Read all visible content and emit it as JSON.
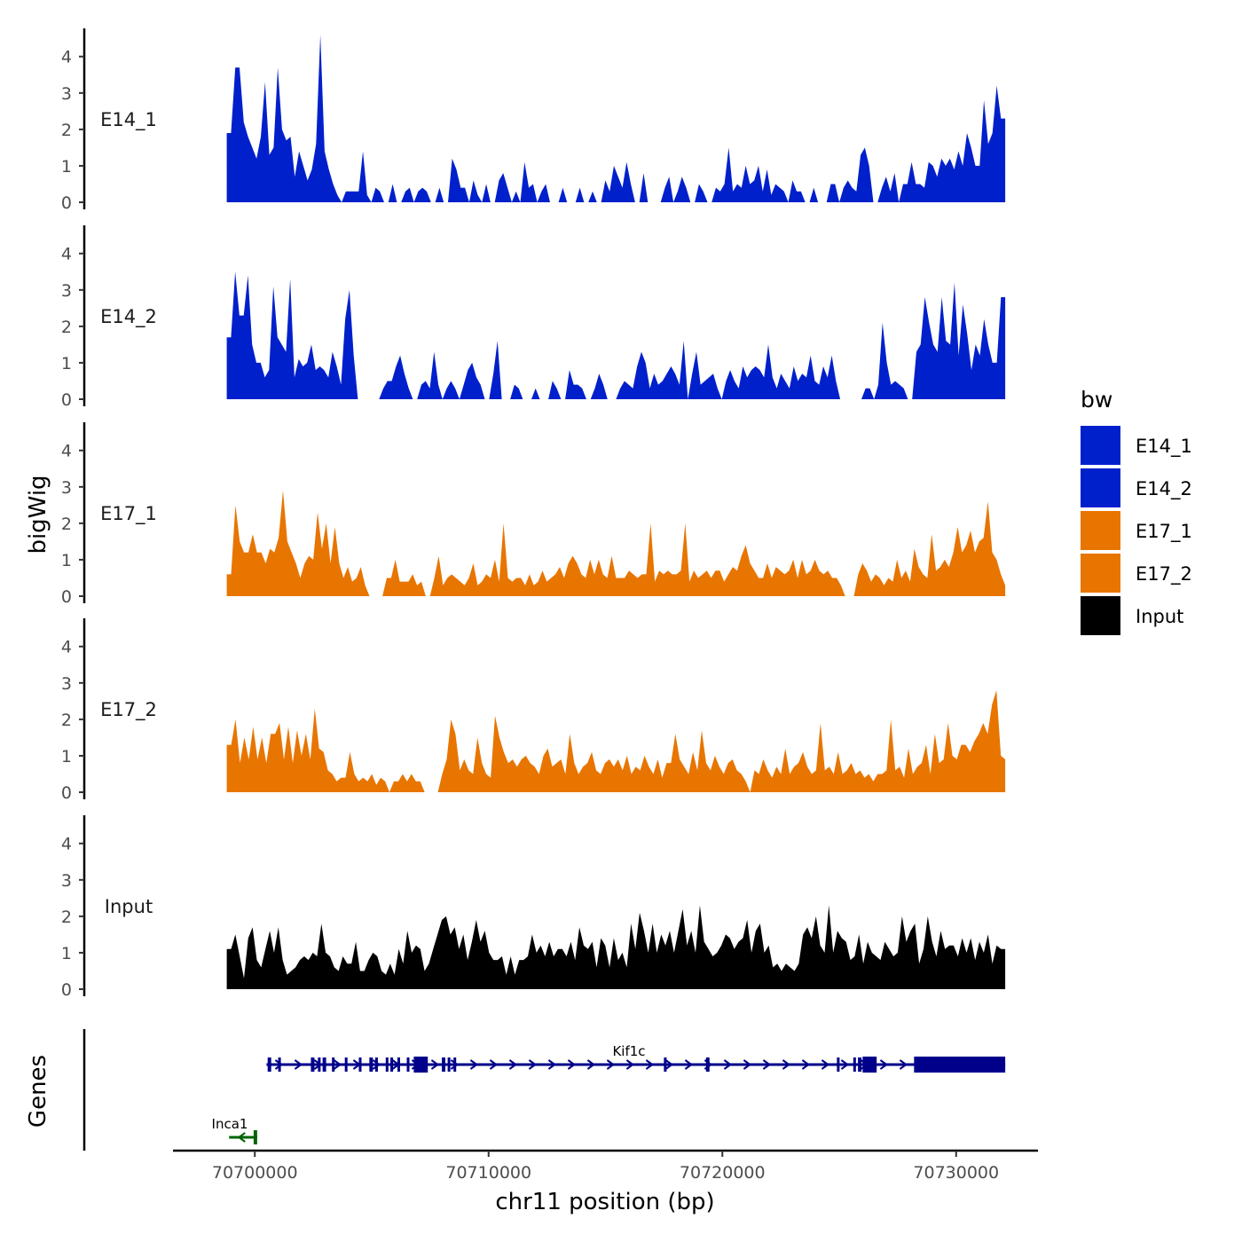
{
  "chart_data": {
    "type": "area",
    "y_axis_title": "bigWig",
    "x_axis_title": "chr11 position (bp)",
    "xlim": [
      70696500,
      70733500
    ],
    "data_range": [
      70698800,
      70732100
    ],
    "ylim": [
      0,
      4.7
    ],
    "y_ticks": [
      "0",
      "1",
      "2",
      "3",
      "4"
    ],
    "x_ticks": [
      {
        "value": 70700000,
        "label": "70700000"
      },
      {
        "value": 70710000,
        "label": "70710000"
      },
      {
        "value": 70720000,
        "label": "70720000"
      },
      {
        "value": 70730000,
        "label": "70730000"
      }
    ],
    "legend": {
      "title": "bw",
      "items": [
        {
          "label": "E14_1",
          "color": "#0020cc"
        },
        {
          "label": "E14_2",
          "color": "#0020cc"
        },
        {
          "label": "E17_1",
          "color": "#e87500"
        },
        {
          "label": "E17_2",
          "color": "#e87500"
        },
        {
          "label": "Input",
          "color": "#000000"
        }
      ]
    },
    "series": [
      {
        "name": "E14_1",
        "color": "#0020cc",
        "values": [
          1.9,
          1.9,
          3.7,
          3.7,
          2.2,
          1.8,
          1.5,
          1.2,
          1.8,
          3.3,
          1.3,
          1.5,
          3.7,
          2.0,
          1.7,
          1.8,
          0.7,
          1.4,
          1.0,
          0.6,
          0.9,
          1.6,
          4.6,
          1.4,
          0.9,
          0.5,
          0.2,
          0.0,
          0.3,
          0.3,
          0.3,
          0.3,
          1.4,
          0.2,
          0.0,
          0.4,
          0.3,
          0.0,
          0.0,
          0.5,
          0.0,
          0.0,
          0.3,
          0.4,
          0.0,
          0.3,
          0.4,
          0.3,
          0.0,
          0.0,
          0.4,
          0.0,
          0.0,
          1.2,
          0.9,
          0.4,
          0.4,
          0.0,
          0.6,
          0.2,
          0.0,
          0.5,
          0.0,
          0.0,
          0.6,
          0.8,
          0.4,
          0.0,
          0.3,
          0.0,
          1.1,
          0.4,
          0.5,
          0.0,
          0.3,
          0.5,
          0.0,
          0.0,
          0.0,
          0.4,
          0.0,
          0.0,
          0.0,
          0.4,
          0.0,
          0.0,
          0.3,
          0.0,
          0.0,
          0.6,
          0.3,
          1.0,
          0.7,
          0.4,
          1.1,
          0.5,
          0.0,
          0.0,
          0.8,
          0.0,
          0.0,
          0.0,
          0.0,
          0.4,
          0.7,
          0.0,
          0.3,
          0.7,
          0.4,
          0.0,
          0.0,
          0.5,
          0.3,
          0.0,
          0.0,
          0.4,
          0.3,
          0.5,
          1.5,
          0.3,
          0.5,
          0.4,
          1.0,
          0.5,
          0.6,
          1.0,
          0.3,
          0.9,
          0.2,
          0.5,
          0.4,
          0.3,
          0.0,
          0.6,
          0.3,
          0.3,
          0.0,
          0.0,
          0.4,
          0.0,
          0.0,
          0.0,
          0.5,
          0.5,
          0.0,
          0.4,
          0.6,
          0.4,
          0.3,
          1.3,
          1.5,
          1.0,
          0.0,
          0.0,
          0.4,
          0.7,
          0.3,
          0.8,
          0.0,
          0.5,
          0.5,
          1.1,
          0.5,
          0.5,
          0.4,
          1.1,
          1.0,
          0.7,
          1.2,
          1.0,
          1.2,
          0.9,
          1.4,
          1.0,
          1.9,
          1.5,
          1.0,
          1.0,
          2.8,
          1.6,
          1.9,
          3.2,
          2.3,
          2.3
        ]
      },
      {
        "name": "E14_2",
        "color": "#0020cc",
        "values": [
          1.7,
          1.7,
          3.5,
          2.3,
          2.3,
          3.4,
          1.5,
          1.0,
          1.0,
          0.6,
          0.8,
          3.1,
          1.7,
          1.5,
          1.3,
          3.3,
          0.6,
          1.1,
          0.9,
          1.0,
          1.5,
          0.8,
          0.9,
          0.8,
          0.6,
          1.3,
          0.9,
          0.4,
          2.2,
          3.0,
          1.2,
          0.0,
          0.0,
          0.0,
          0.0,
          0.0,
          0.0,
          0.3,
          0.5,
          0.5,
          0.9,
          1.2,
          0.7,
          0.3,
          0.0,
          0.0,
          0.4,
          0.5,
          0.3,
          1.3,
          0.4,
          0.0,
          0.3,
          0.5,
          0.3,
          0.0,
          0.4,
          0.8,
          1.0,
          0.6,
          0.4,
          0.0,
          0.0,
          0.7,
          1.6,
          0.0,
          0.0,
          0.0,
          0.4,
          0.3,
          0.0,
          0.0,
          0.0,
          0.3,
          0.0,
          0.0,
          0.0,
          0.5,
          0.3,
          0.0,
          0.0,
          0.8,
          0.4,
          0.4,
          0.3,
          0.0,
          0.0,
          0.3,
          0.7,
          0.4,
          0.0,
          0.0,
          0.0,
          0.3,
          0.5,
          0.4,
          0.3,
          0.9,
          1.3,
          1.0,
          0.3,
          0.7,
          0.4,
          0.5,
          0.7,
          0.9,
          0.7,
          0.4,
          1.6,
          0.0,
          0.7,
          1.3,
          0.4,
          0.5,
          0.6,
          0.7,
          0.3,
          0.0,
          0.5,
          0.8,
          0.5,
          0.3,
          0.9,
          0.6,
          0.8,
          0.9,
          0.8,
          0.6,
          1.5,
          0.6,
          0.3,
          0.7,
          0.5,
          0.3,
          0.9,
          0.5,
          0.7,
          0.6,
          1.2,
          0.5,
          0.4,
          0.9,
          0.6,
          1.2,
          0.5,
          0.0,
          0.0,
          0.0,
          0.0,
          0.0,
          0.0,
          0.3,
          0.3,
          0.0,
          0.4,
          2.1,
          1.0,
          0.4,
          0.5,
          0.4,
          0.3,
          0.0,
          0.0,
          1.3,
          1.5,
          2.8,
          2.1,
          1.5,
          1.3,
          2.8,
          1.6,
          1.5,
          3.2,
          1.2,
          2.6,
          1.8,
          0.8,
          1.5,
          1.2,
          2.2,
          1.5,
          1.0,
          1.0,
          2.8,
          2.8
        ]
      },
      {
        "name": "E17_1",
        "color": "#e87500",
        "values": [
          0.6,
          0.6,
          2.5,
          1.5,
          1.2,
          1.2,
          1.7,
          1.2,
          1.2,
          0.9,
          1.3,
          1.2,
          1.6,
          2.9,
          1.5,
          1.2,
          0.9,
          0.5,
          0.9,
          1.1,
          1.0,
          2.3,
          1.3,
          2.0,
          0.9,
          1.9,
          0.9,
          0.5,
          0.8,
          0.4,
          0.5,
          0.8,
          0.3,
          0.0,
          0.0,
          0.0,
          0.0,
          0.5,
          0.5,
          1.0,
          0.4,
          0.4,
          0.4,
          0.6,
          0.3,
          0.4,
          0.0,
          0.0,
          0.5,
          1.1,
          0.3,
          0.5,
          0.6,
          0.5,
          0.4,
          0.3,
          0.5,
          0.9,
          0.3,
          0.4,
          0.6,
          0.5,
          1.0,
          0.4,
          2.0,
          0.5,
          0.4,
          0.5,
          0.5,
          0.3,
          0.6,
          0.3,
          0.4,
          0.7,
          0.4,
          0.5,
          0.6,
          0.8,
          0.5,
          0.9,
          1.1,
          0.9,
          0.6,
          0.5,
          1.0,
          0.6,
          1.0,
          0.6,
          0.5,
          1.1,
          0.5,
          0.5,
          0.5,
          0.7,
          0.6,
          0.5,
          0.6,
          0.6,
          2.0,
          0.4,
          0.7,
          0.6,
          0.7,
          0.6,
          0.6,
          0.7,
          2.0,
          0.4,
          0.7,
          0.5,
          0.6,
          0.7,
          0.5,
          0.7,
          0.7,
          0.4,
          0.6,
          0.8,
          0.7,
          1.1,
          1.4,
          0.9,
          0.7,
          0.5,
          0.5,
          0.9,
          0.5,
          0.8,
          0.7,
          0.6,
          0.7,
          1.0,
          0.5,
          1.0,
          0.6,
          0.7,
          1.0,
          0.7,
          0.6,
          0.7,
          0.5,
          0.5,
          0.3,
          0.0,
          0.0,
          0.0,
          0.6,
          0.9,
          0.7,
          0.4,
          0.6,
          0.5,
          0.3,
          0.5,
          0.4,
          1.0,
          0.5,
          0.7,
          0.4,
          1.3,
          0.8,
          0.6,
          0.5,
          1.7,
          0.7,
          0.8,
          1.0,
          0.8,
          1.2,
          1.9,
          1.2,
          1.4,
          1.8,
          1.2,
          1.5,
          1.6,
          2.6,
          1.2,
          1.0,
          0.6,
          0.3
        ]
      },
      {
        "name": "E17_2",
        "color": "#e87500",
        "values": [
          1.3,
          1.3,
          2.0,
          0.8,
          1.5,
          0.9,
          1.8,
          0.9,
          1.5,
          0.8,
          1.6,
          1.6,
          1.9,
          0.9,
          1.8,
          0.8,
          1.7,
          1.0,
          1.6,
          0.9,
          2.3,
          1.2,
          1.1,
          0.6,
          0.5,
          0.3,
          0.4,
          0.4,
          1.1,
          0.5,
          0.3,
          0.4,
          0.3,
          0.5,
          0.2,
          0.4,
          0.3,
          0.0,
          0.3,
          0.3,
          0.5,
          0.3,
          0.5,
          0.3,
          0.3,
          0.0,
          0.0,
          0.0,
          0.0,
          0.5,
          0.9,
          2.0,
          1.6,
          0.6,
          0.9,
          0.6,
          0.5,
          1.5,
          0.8,
          0.5,
          0.4,
          2.1,
          1.5,
          1.1,
          0.8,
          0.9,
          0.7,
          0.9,
          1.0,
          0.8,
          0.7,
          0.5,
          1.0,
          1.2,
          0.7,
          0.8,
          0.9,
          0.5,
          1.6,
          0.8,
          0.5,
          0.7,
          0.8,
          1.1,
          0.6,
          0.5,
          0.8,
          0.9,
          0.7,
          0.9,
          0.6,
          1.0,
          0.5,
          0.7,
          0.6,
          1.0,
          0.7,
          0.5,
          0.9,
          0.4,
          0.8,
          0.8,
          1.6,
          0.9,
          0.7,
          0.5,
          1.1,
          0.6,
          1.7,
          0.8,
          0.6,
          1.0,
          0.7,
          0.5,
          0.8,
          0.9,
          0.6,
          0.5,
          0.3,
          0.0,
          0.6,
          0.5,
          0.9,
          0.6,
          0.4,
          0.7,
          0.5,
          1.2,
          0.5,
          0.7,
          0.8,
          1.1,
          0.7,
          0.5,
          0.6,
          1.9,
          0.6,
          0.7,
          0.5,
          1.1,
          0.5,
          0.6,
          0.8,
          0.5,
          0.6,
          0.4,
          0.5,
          0.3,
          0.5,
          0.5,
          0.6,
          2.0,
          0.6,
          0.7,
          0.4,
          1.2,
          0.5,
          0.7,
          0.8,
          1.3,
          0.5,
          1.6,
          0.8,
          0.9,
          1.9,
          1.0,
          0.9,
          1.3,
          1.3,
          1.1,
          1.4,
          1.6,
          1.9,
          1.6,
          2.4,
          2.8,
          1.0,
          0.9
        ]
      },
      {
        "name": "Input",
        "color": "#000000",
        "values": [
          1.1,
          1.1,
          1.5,
          0.9,
          0.3,
          1.4,
          1.7,
          0.8,
          0.6,
          1.1,
          1.6,
          1.0,
          1.7,
          0.8,
          0.4,
          0.5,
          0.6,
          0.8,
          0.9,
          0.8,
          1.0,
          0.9,
          1.8,
          1.0,
          0.9,
          0.6,
          0.5,
          0.9,
          0.7,
          0.7,
          1.3,
          0.5,
          0.5,
          0.8,
          1.0,
          0.9,
          0.5,
          0.4,
          0.7,
          0.4,
          1.1,
          0.7,
          1.6,
          1.0,
          1.2,
          1.1,
          0.5,
          0.7,
          1.1,
          1.5,
          1.9,
          2.0,
          1.5,
          1.7,
          1.1,
          1.5,
          0.8,
          1.3,
          1.9,
          1.3,
          1.6,
          1.0,
          0.8,
          0.8,
          0.9,
          0.4,
          0.9,
          0.4,
          0.8,
          0.8,
          0.9,
          1.5,
          1.0,
          1.2,
          0.9,
          1.3,
          0.9,
          1.1,
          1.1,
          0.9,
          1.3,
          0.8,
          1.7,
          1.2,
          1.1,
          1.3,
          0.6,
          1.4,
          1.2,
          0.6,
          1.4,
          0.8,
          1.0,
          0.6,
          1.8,
          1.1,
          2.1,
          1.6,
          1.0,
          1.8,
          1.0,
          1.5,
          1.2,
          1.6,
          1.0,
          1.6,
          2.2,
          1.2,
          1.6,
          1.0,
          2.3,
          1.3,
          1.1,
          0.9,
          1.0,
          1.2,
          1.5,
          1.4,
          1.1,
          1.3,
          1.4,
          1.9,
          1.0,
          1.6,
          1.8,
          1.0,
          1.2,
          0.6,
          0.7,
          0.5,
          0.7,
          0.6,
          0.5,
          0.7,
          1.5,
          1.7,
          1.4,
          2.0,
          1.2,
          1.0,
          2.3,
          1.0,
          1.6,
          1.4,
          1.3,
          0.8,
          0.9,
          1.5,
          0.7,
          1.3,
          1.0,
          0.9,
          0.8,
          1.3,
          1.1,
          0.9,
          1.0,
          2.0,
          1.3,
          1.6,
          1.8,
          0.7,
          1.1,
          2.0,
          1.3,
          0.9,
          1.6,
          1.1,
          1.2,
          1.2,
          0.9,
          1.4,
          1.0,
          1.4,
          0.8,
          1.3,
          1.0,
          1.5,
          0.7,
          1.2,
          1.1,
          1.1
        ]
      }
    ],
    "genes_track": {
      "label": "Genes",
      "genes": [
        {
          "name": "Kif1c",
          "strand": "+",
          "start": 70700500,
          "end": 70732100,
          "color": "#00008b",
          "exons": [
            [
              70700550,
              70700700
            ],
            [
              70701000,
              70701100
            ],
            [
              70702400,
              70702550
            ],
            [
              70702700,
              70702800
            ],
            [
              70702900,
              70703050
            ],
            [
              70703300,
              70703400
            ],
            [
              70703850,
              70703950
            ],
            [
              70704450,
              70704550
            ],
            [
              70704900,
              70705050
            ],
            [
              70705150,
              70705250
            ],
            [
              70705600,
              70705700
            ],
            [
              70705800,
              70705900
            ],
            [
              70706100,
              70706200
            ],
            [
              70706500,
              70706600
            ],
            [
              70706800,
              70707400
            ],
            [
              70708000,
              70708150
            ],
            [
              70708250,
              70708350
            ],
            [
              70708500,
              70708600
            ],
            [
              70717500,
              70717600
            ],
            [
              70719300,
              70719450
            ],
            [
              70724900,
              70725000
            ],
            [
              70725600,
              70725700
            ],
            [
              70725800,
              70725950
            ],
            [
              70726000,
              70726600
            ],
            [
              70728200,
              70732100
            ]
          ]
        },
        {
          "name": "Inca1",
          "strand": "-",
          "start": 70698900,
          "end": 70700100,
          "color": "#006400",
          "exons": [
            [
              70699950,
              70700100
            ]
          ]
        }
      ]
    }
  }
}
